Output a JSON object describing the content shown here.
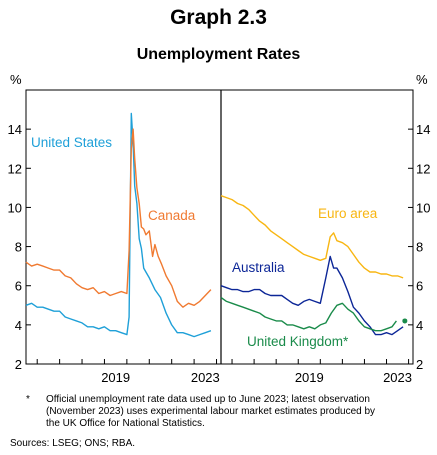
{
  "title": "Graph 2.3",
  "subtitle": "Unemployment Rates",
  "y_unit_left": "%",
  "y_unit_right": "%",
  "footnote_marker": "*",
  "footnote": "Official unemployment rate data used up to June 2023; latest observation (November 2023) uses experimental labour market estimates produced by the UK Office for National Statistics.",
  "sources": "Sources: LSEG; ONS; RBA.",
  "chart_data": [
    {
      "type": "line",
      "ylabel": "%",
      "ylim": [
        2,
        16
      ],
      "yticks": [
        2,
        4,
        6,
        8,
        10,
        12,
        14
      ],
      "xlim": [
        2015.5,
        2024.2
      ],
      "xticks": [
        2019,
        2023
      ],
      "grid": false,
      "series": [
        {
          "name": "United States",
          "color": "#1fa0d8",
          "x": [
            2015.5,
            2015.75,
            2016.0,
            2016.25,
            2016.5,
            2016.75,
            2017.0,
            2017.25,
            2017.5,
            2017.75,
            2018.0,
            2018.25,
            2018.5,
            2018.75,
            2019.0,
            2019.25,
            2019.5,
            2019.75,
            2020.0,
            2020.1,
            2020.2,
            2020.28,
            2020.35,
            2020.45,
            2020.55,
            2020.65,
            2020.75,
            2020.85,
            2021.0,
            2021.25,
            2021.5,
            2021.75,
            2022.0,
            2022.25,
            2022.5,
            2022.75,
            2023.0,
            2023.25,
            2023.5,
            2023.75
          ],
          "y": [
            5.0,
            5.1,
            4.9,
            4.9,
            4.8,
            4.7,
            4.7,
            4.4,
            4.3,
            4.2,
            4.1,
            3.9,
            3.9,
            3.8,
            3.9,
            3.7,
            3.7,
            3.6,
            3.5,
            4.4,
            14.8,
            13.3,
            11.1,
            10.2,
            8.4,
            7.9,
            6.9,
            6.7,
            6.4,
            5.8,
            5.4,
            4.6,
            4.0,
            3.6,
            3.6,
            3.5,
            3.4,
            3.5,
            3.6,
            3.7
          ]
        },
        {
          "name": "Canada",
          "color": "#f07a31",
          "x": [
            2015.5,
            2015.75,
            2016.0,
            2016.25,
            2016.5,
            2016.75,
            2017.0,
            2017.25,
            2017.5,
            2017.75,
            2018.0,
            2018.25,
            2018.5,
            2018.75,
            2019.0,
            2019.25,
            2019.5,
            2019.75,
            2020.0,
            2020.1,
            2020.2,
            2020.28,
            2020.35,
            2020.45,
            2020.55,
            2020.65,
            2020.75,
            2020.85,
            2021.0,
            2021.15,
            2021.25,
            2021.4,
            2021.55,
            2021.75,
            2022.0,
            2022.25,
            2022.5,
            2022.75,
            2023.0,
            2023.25,
            2023.5,
            2023.75
          ],
          "y": [
            7.2,
            7.0,
            7.1,
            7.0,
            6.9,
            6.8,
            6.8,
            6.5,
            6.4,
            6.1,
            5.9,
            5.8,
            5.9,
            5.6,
            5.7,
            5.5,
            5.6,
            5.7,
            5.6,
            7.8,
            13.0,
            14.0,
            12.5,
            11.0,
            10.2,
            9.0,
            8.9,
            8.6,
            8.8,
            7.5,
            8.1,
            7.5,
            7.1,
            6.5,
            6.0,
            5.2,
            4.9,
            5.1,
            5.0,
            5.2,
            5.5,
            5.8
          ]
        },
        {
          "name": "Euro area",
          "color": "#f8b612",
          "x": [
            2015.5,
            2015.75,
            2016.0,
            2016.25,
            2016.5,
            2016.75,
            2017.0,
            2017.25,
            2017.5,
            2017.75,
            2018.0,
            2018.25,
            2018.5,
            2018.75,
            2019.0,
            2019.25,
            2019.5,
            2019.75,
            2020.0,
            2020.25,
            2020.45,
            2020.6,
            2020.75,
            2021.0,
            2021.25,
            2021.5,
            2021.75,
            2022.0,
            2022.25,
            2022.5,
            2022.75,
            2023.0,
            2023.25,
            2023.5,
            2023.75
          ],
          "y": [
            10.6,
            10.5,
            10.4,
            10.2,
            10.1,
            9.9,
            9.6,
            9.3,
            9.1,
            8.8,
            8.6,
            8.4,
            8.2,
            8.0,
            7.8,
            7.6,
            7.5,
            7.4,
            7.3,
            7.4,
            8.5,
            8.7,
            8.3,
            8.2,
            8.0,
            7.6,
            7.2,
            6.9,
            6.7,
            6.7,
            6.6,
            6.6,
            6.5,
            6.5,
            6.4
          ]
        },
        {
          "name": "Australia",
          "color": "#0c2697",
          "x": [
            2015.5,
            2015.75,
            2016.0,
            2016.25,
            2016.5,
            2016.75,
            2017.0,
            2017.25,
            2017.5,
            2017.75,
            2018.0,
            2018.25,
            2018.5,
            2018.75,
            2019.0,
            2019.25,
            2019.5,
            2019.75,
            2020.0,
            2020.25,
            2020.45,
            2020.6,
            2020.75,
            2021.0,
            2021.25,
            2021.5,
            2021.75,
            2022.0,
            2022.25,
            2022.5,
            2022.75,
            2023.0,
            2023.25,
            2023.5,
            2023.75
          ],
          "y": [
            6.0,
            5.9,
            5.8,
            5.8,
            5.7,
            5.7,
            5.8,
            5.8,
            5.6,
            5.5,
            5.5,
            5.5,
            5.3,
            5.1,
            5.0,
            5.2,
            5.3,
            5.2,
            5.1,
            6.4,
            7.5,
            6.9,
            6.9,
            6.4,
            5.7,
            4.9,
            4.6,
            4.2,
            3.9,
            3.5,
            3.5,
            3.6,
            3.5,
            3.7,
            3.9
          ]
        },
        {
          "name": "United Kingdom*",
          "color": "#1a8b4a",
          "x": [
            2015.5,
            2015.75,
            2016.0,
            2016.25,
            2016.5,
            2016.75,
            2017.0,
            2017.25,
            2017.5,
            2017.75,
            2018.0,
            2018.25,
            2018.5,
            2018.75,
            2019.0,
            2019.25,
            2019.5,
            2019.75,
            2020.0,
            2020.25,
            2020.5,
            2020.75,
            2021.0,
            2021.25,
            2021.5,
            2021.75,
            2022.0,
            2022.25,
            2022.5,
            2022.75,
            2023.0,
            2023.25,
            2023.45
          ],
          "y": [
            5.4,
            5.2,
            5.1,
            5.0,
            4.9,
            4.8,
            4.7,
            4.6,
            4.4,
            4.3,
            4.2,
            4.2,
            4.0,
            4.0,
            3.9,
            3.8,
            3.9,
            3.8,
            4.0,
            4.1,
            4.6,
            5.0,
            5.1,
            4.8,
            4.6,
            4.2,
            3.9,
            3.8,
            3.7,
            3.7,
            3.8,
            3.9,
            4.2
          ],
          "latest_point": {
            "x": 2023.83,
            "y": 4.2
          }
        }
      ]
    }
  ]
}
